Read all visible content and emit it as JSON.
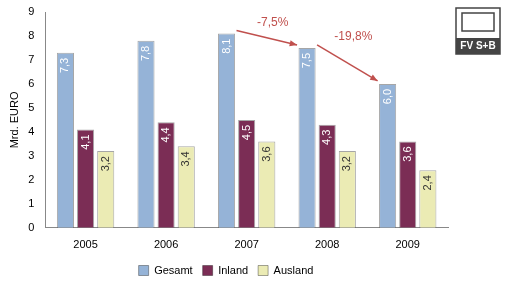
{
  "chart_data": {
    "type": "bar",
    "y_label": "Mrd. EURO",
    "categories": [
      "2005",
      "2006",
      "2007",
      "2008",
      "2009"
    ],
    "series": [
      {
        "name": "Gesamt",
        "color": "#95b3d7",
        "values": [
          7.3,
          7.8,
          8.1,
          7.5,
          6.0
        ],
        "value_labels": [
          "7,3",
          "7,8",
          "8,1",
          "7,5",
          "6,0"
        ]
      },
      {
        "name": "Inland",
        "color": "#7b2d55",
        "values": [
          4.1,
          4.4,
          4.5,
          4.3,
          3.6
        ],
        "value_labels": [
          "4,1",
          "4,4",
          "4,5",
          "4,3",
          "3,6"
        ]
      },
      {
        "name": "Ausland",
        "color": "#ebebb4",
        "values": [
          3.2,
          3.4,
          3.6,
          3.2,
          2.4
        ],
        "value_labels": [
          "3,2",
          "3,4",
          "3,6",
          "3,2",
          "2,4"
        ]
      }
    ],
    "annotations": [
      {
        "text": "-7,5%",
        "from": "2007",
        "to": "2008"
      },
      {
        "text": "-19,8%",
        "from": "2008",
        "to": "2009"
      }
    ],
    "logo": "FV S+B",
    "ylim": [
      0,
      9
    ],
    "yticks": [
      0,
      1,
      2,
      3,
      4,
      5,
      6,
      7,
      8,
      9
    ],
    "grid": false,
    "legend": "bottom",
    "data_labels": true
  }
}
